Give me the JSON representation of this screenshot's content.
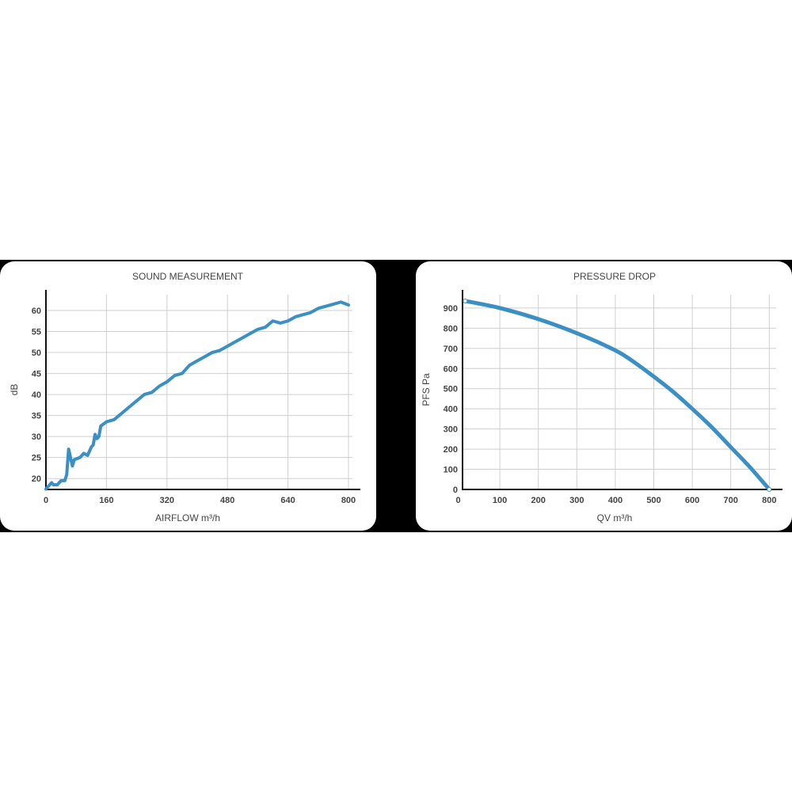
{
  "colors": {
    "line": "#3a8fc4",
    "axis": "#111111",
    "grid": "#cfcfcf",
    "text": "#444444",
    "background": "#000000",
    "card": "#ffffff"
  },
  "chart_data": [
    {
      "type": "line",
      "title": "SOUND MEASUREMENT",
      "xlabel": "AIRFLOW m³/h",
      "ylabel": "dB",
      "xticks": [
        0,
        160,
        320,
        480,
        640,
        800
      ],
      "yticks": [
        20,
        25,
        30,
        35,
        40,
        45,
        50,
        55,
        60
      ],
      "xlim": [
        0,
        830
      ],
      "ylim": [
        17.4,
        64.9
      ],
      "grid": true,
      "x": [
        0,
        10,
        15,
        20,
        30,
        40,
        50,
        55,
        60,
        65,
        70,
        75,
        90,
        100,
        110,
        120,
        125,
        130,
        135,
        140,
        145,
        160,
        180,
        200,
        220,
        240,
        260,
        280,
        300,
        320,
        340,
        360,
        380,
        400,
        420,
        440,
        460,
        480,
        500,
        520,
        540,
        560,
        580,
        600,
        620,
        640,
        660,
        680,
        700,
        720,
        740,
        760,
        780,
        800
      ],
      "y": [
        17.5,
        18.5,
        19,
        18.5,
        18.5,
        19.5,
        19.5,
        21,
        27,
        25,
        23,
        24.5,
        25,
        26,
        25.5,
        27.5,
        28,
        30.5,
        29.5,
        30,
        32.5,
        33.5,
        34,
        35.5,
        37,
        38.5,
        40,
        40.5,
        42,
        43,
        44.5,
        45,
        47,
        48,
        49,
        50,
        50.5,
        51.5,
        52.5,
        53.5,
        54.5,
        55.5,
        56,
        57.5,
        57,
        57.5,
        58.5,
        59,
        59.5,
        60.5,
        61,
        61.5,
        62,
        61.3
      ]
    },
    {
      "type": "line",
      "title": "PRESSURE DROP",
      "xlabel": "QV m³/h",
      "ylabel": "PFS Pa",
      "xticks": [
        0,
        100,
        200,
        300,
        400,
        500,
        600,
        700,
        800
      ],
      "yticks": [
        0,
        100,
        200,
        300,
        400,
        500,
        600,
        700,
        800,
        900
      ],
      "xlim": [
        0,
        836
      ],
      "ylim": [
        0,
        990
      ],
      "grid": true,
      "x": [
        10,
        100,
        200,
        300,
        400,
        450,
        500,
        550,
        600,
        650,
        700,
        750,
        800
      ],
      "y": [
        935,
        900,
        845,
        775,
        690,
        630,
        560,
        485,
        400,
        310,
        210,
        110,
        0
      ]
    }
  ]
}
